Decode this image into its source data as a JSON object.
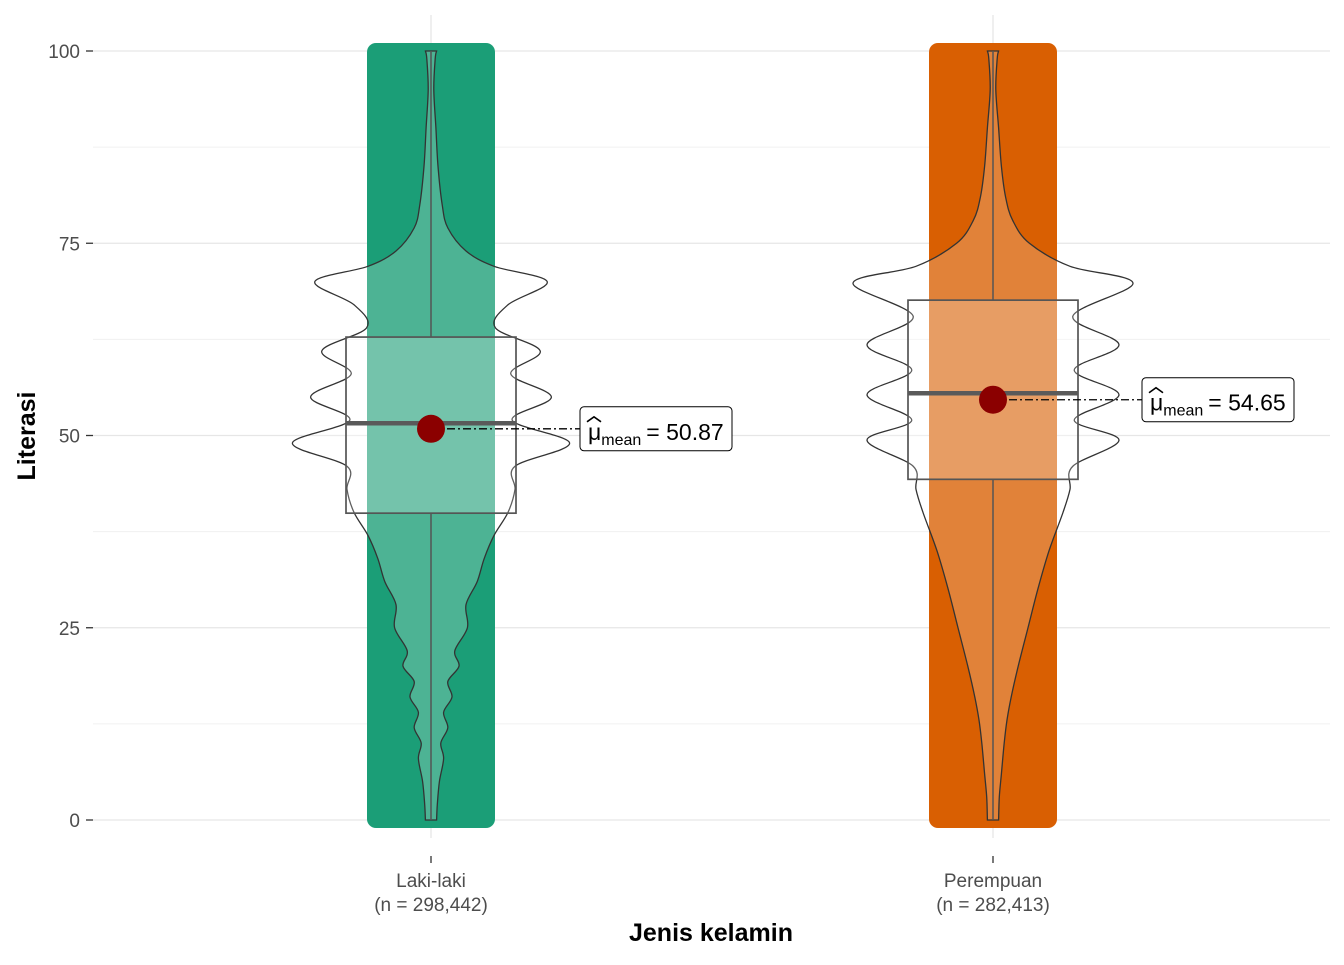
{
  "chart_data": {
    "type": "violin-box-jitter",
    "title": "",
    "xlabel": "Jenis kelamin",
    "ylabel": "Literasi",
    "ylim": [
      0,
      100
    ],
    "yticks": [
      0,
      25,
      50,
      75,
      100
    ],
    "grid": true,
    "legend": "none",
    "mean_color": "#8B0000",
    "groups": [
      {
        "name": "Laki-laki",
        "n_label": "(n = 298,442)",
        "color": "#1B9E77",
        "min": 0,
        "q1": 39.9,
        "median": 51.6,
        "q3": 62.8,
        "max": 100,
        "mean": 50.87,
        "mean_label_sub": "mean",
        "mean_label_value": "= 50.87",
        "density_profile": [
          [
            0,
            0.04
          ],
          [
            2,
            0.045
          ],
          [
            5,
            0.06
          ],
          [
            8,
            0.09
          ],
          [
            10,
            0.07
          ],
          [
            12,
            0.12
          ],
          [
            14,
            0.09
          ],
          [
            16,
            0.15
          ],
          [
            18,
            0.12
          ],
          [
            20,
            0.2
          ],
          [
            22,
            0.17
          ],
          [
            25,
            0.26
          ],
          [
            28,
            0.25
          ],
          [
            31,
            0.33
          ],
          [
            34,
            0.38
          ],
          [
            37,
            0.45
          ],
          [
            40,
            0.55
          ],
          [
            43,
            0.6
          ],
          [
            46,
            0.6
          ],
          [
            49,
            0.99
          ],
          [
            52,
            0.58
          ],
          [
            55,
            0.86
          ],
          [
            58,
            0.57
          ],
          [
            61,
            0.78
          ],
          [
            64,
            0.46
          ],
          [
            67,
            0.55
          ],
          [
            70,
            0.83
          ],
          [
            72,
            0.45
          ],
          [
            74,
            0.25
          ],
          [
            77,
            0.12
          ],
          [
            80,
            0.08
          ],
          [
            85,
            0.05
          ],
          [
            90,
            0.035
          ],
          [
            95,
            0.02
          ],
          [
            99,
            0.03
          ],
          [
            100,
            0.04
          ]
        ]
      },
      {
        "name": "Perempuan",
        "n_label": "(n = 282,413)",
        "color": "#D95F02",
        "min": 0,
        "q1": 44.3,
        "median": 55.5,
        "q3": 67.6,
        "max": 100,
        "mean": 54.65,
        "mean_label_sub": "mean",
        "mean_label_value": "= 54.65",
        "density_profile": [
          [
            0,
            0.04
          ],
          [
            3,
            0.045
          ],
          [
            6,
            0.06
          ],
          [
            10,
            0.08
          ],
          [
            13,
            0.1
          ],
          [
            16,
            0.13
          ],
          [
            20,
            0.18
          ],
          [
            25,
            0.25
          ],
          [
            30,
            0.32
          ],
          [
            35,
            0.4
          ],
          [
            40,
            0.5
          ],
          [
            43,
            0.55
          ],
          [
            46,
            0.57
          ],
          [
            49.4,
            0.9
          ],
          [
            52,
            0.58
          ],
          [
            55.3,
            0.9
          ],
          [
            58.5,
            0.58
          ],
          [
            61.8,
            0.9
          ],
          [
            65.5,
            0.57
          ],
          [
            69.8,
            1.0
          ],
          [
            72,
            0.55
          ],
          [
            75,
            0.26
          ],
          [
            78,
            0.14
          ],
          [
            81,
            0.09
          ],
          [
            85,
            0.06
          ],
          [
            90,
            0.04
          ],
          [
            95,
            0.02
          ],
          [
            99,
            0.03
          ],
          [
            100,
            0.04
          ]
        ]
      }
    ]
  }
}
